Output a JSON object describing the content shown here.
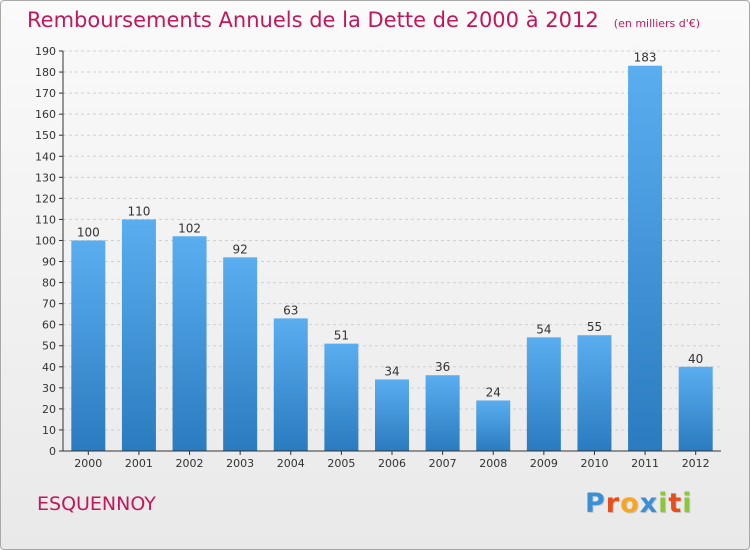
{
  "header": {
    "title": "Remboursements Annuels de la Dette de 2000 à 2012",
    "unit": "(en milliers d'€)"
  },
  "footer": {
    "commune": "ESQUENNOY"
  },
  "logo": {
    "text": "Proxiti",
    "letters": [
      {
        "char": "P",
        "color": "#3b8fd4"
      },
      {
        "char": "r",
        "color": "#e84e1c"
      },
      {
        "char": "o",
        "color": "#f5a623"
      },
      {
        "char": "x",
        "color": "#3b8fd4"
      },
      {
        "char": "i",
        "color": "#8cc63f"
      },
      {
        "char": "t",
        "color": "#e84e1c"
      },
      {
        "char": "i",
        "color": "#8cc63f"
      }
    ]
  },
  "colors": {
    "bar_light": "#5aaef0",
    "bar_dark": "#2a7bbf",
    "accent": "#c2185b",
    "axis": "#333333",
    "grid": "#d0d0d0"
  },
  "chart_data": {
    "type": "bar",
    "title": "Remboursements Annuels de la Dette de 2000 à 2012",
    "xlabel": "",
    "ylabel": "",
    "categories": [
      "2000",
      "2001",
      "2002",
      "2003",
      "2004",
      "2005",
      "2006",
      "2007",
      "2008",
      "2009",
      "2010",
      "2011",
      "2012"
    ],
    "values": [
      100,
      110,
      102,
      92,
      63,
      51,
      34,
      36,
      24,
      54,
      55,
      183,
      40
    ],
    "ylim": [
      0,
      190
    ],
    "yticks": [
      0,
      10,
      20,
      30,
      40,
      50,
      60,
      70,
      80,
      90,
      100,
      110,
      120,
      130,
      140,
      150,
      160,
      170,
      180,
      190
    ],
    "grid": true,
    "data_labels": true
  }
}
